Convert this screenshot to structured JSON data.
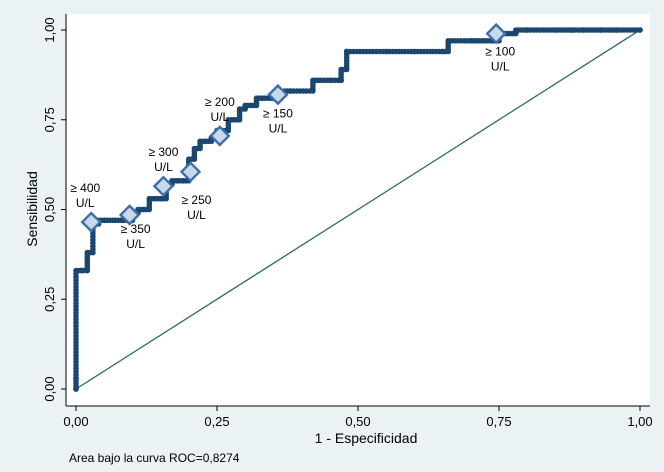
{
  "chart_data": {
    "type": "line",
    "title": "",
    "xlabel": "1 - Especificidad",
    "ylabel": "Sensibilidad",
    "xlim": [
      0,
      1
    ],
    "ylim": [
      0,
      1
    ],
    "x_ticks": [
      0,
      0.25,
      0.5,
      0.75,
      1
    ],
    "x_tick_labels": [
      "0,00",
      "0,25",
      "0,50",
      "0,75",
      "1,00"
    ],
    "y_ticks": [
      0,
      0.25,
      0.5,
      0.75,
      1
    ],
    "y_tick_labels": [
      "0,00",
      "0,25",
      "0,50",
      "0,75",
      "1,00"
    ],
    "grid": false,
    "note": "Area bajo la curva ROC=0,8274",
    "colors": {
      "curve": "#1a476f",
      "reference": "#2d6d66",
      "marker_fill": "#c9d9ec",
      "background": "#eaf2f3",
      "plot_bg": "#ffffff"
    },
    "series": [
      {
        "x": [
          0,
          0,
          0,
          0.01,
          0.01,
          0.02,
          0.02,
          0.02,
          0.03,
          0.03,
          0.04,
          0.05,
          0.07,
          0.08,
          0.1,
          0.1,
          0.11,
          0.12,
          0.13,
          0.14,
          0.15,
          0.16,
          0.17,
          0.18,
          0.19,
          0.2,
          0.2,
          0.21,
          0.22,
          0.23,
          0.24,
          0.25,
          0.27,
          0.28,
          0.29,
          0.3,
          0.32,
          0.33,
          0.35,
          0.36,
          0.37,
          0.38,
          0.42,
          0.43,
          0.45,
          0.47,
          0.47,
          0.48,
          0.48,
          0.55,
          0.6,
          0.65,
          0.66,
          0.7,
          0.71,
          0.74,
          0.75,
          0.78,
          0.8,
          0.85,
          0.88,
          0.9,
          0.93,
          0.96,
          1
        ],
        "y": [
          0,
          0.03,
          0.33,
          0.33,
          0.33,
          0.33,
          0.36,
          0.38,
          0.46,
          0.46,
          0.47,
          0.47,
          0.47,
          0.47,
          0.47,
          0.49,
          0.5,
          0.5,
          0.53,
          0.53,
          0.53,
          0.57,
          0.58,
          0.58,
          0.58,
          0.61,
          0.64,
          0.67,
          0.69,
          0.69,
          0.7,
          0.72,
          0.75,
          0.75,
          0.78,
          0.79,
          0.81,
          0.81,
          0.81,
          0.82,
          0.83,
          0.83,
          0.86,
          0.86,
          0.86,
          0.86,
          0.89,
          0.94,
          0.94,
          0.94,
          0.94,
          0.94,
          0.97,
          0.97,
          0.97,
          0.97,
          0.99,
          1,
          1,
          1,
          1,
          1,
          1,
          1,
          1
        ]
      },
      {
        "x": [
          0,
          1
        ],
        "y": [
          0,
          1
        ]
      }
    ],
    "cutoffs": [
      {
        "label": "≥ 400",
        "unit": "U/L",
        "x": 0.027,
        "y": 0.465
      },
      {
        "label": "≥ 350",
        "unit": "U/L",
        "x": 0.095,
        "y": 0.485
      },
      {
        "label": "≥ 300",
        "unit": "U/L",
        "x": 0.155,
        "y": 0.565
      },
      {
        "label": "≥ 250",
        "unit": "U/L",
        "x": 0.203,
        "y": 0.605
      },
      {
        "label": "≥ 200",
        "unit": "U/L",
        "x": 0.255,
        "y": 0.705
      },
      {
        "label": "≥ 150",
        "unit": "U/L",
        "x": 0.358,
        "y": 0.82
      },
      {
        "label": "≥ 100",
        "unit": "U/L",
        "x": 0.745,
        "y": 0.99
      }
    ]
  }
}
